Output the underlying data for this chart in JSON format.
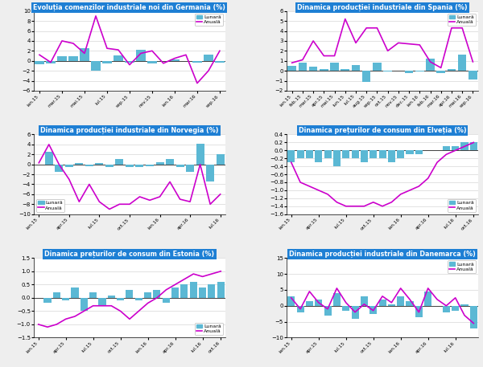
{
  "title_bg_color": "#1E7FD4",
  "bar_color": "#5BB8D4",
  "line_color": "#CC00CC",
  "grid_color": "#CCCCCC",
  "legend_bar_label": "Lunară",
  "legend_line_label": "Anuală",
  "figure_bg": "#EEEEEE",
  "charts": [
    {
      "title": "Evoluția comenzilor industriale noi din Germania (%)",
      "bars": [
        -0.7,
        -0.5,
        1.0,
        1.0,
        2.5,
        -2.0,
        -0.5,
        1.1,
        -0.3,
        2.2,
        -0.5,
        0.0,
        0.2,
        0.0,
        -0.3,
        1.2,
        -0.3
      ],
      "line": [
        1.2,
        -0.3,
        4.0,
        3.5,
        1.5,
        9.0,
        2.5,
        2.2,
        -0.8,
        1.5,
        2.0,
        -0.5,
        0.5,
        1.2,
        -4.5,
        -2.0,
        2.0
      ],
      "ylim": [
        -6,
        10
      ],
      "yticks": [
        -6,
        -4,
        -2,
        0,
        2,
        4,
        6,
        8,
        10
      ],
      "xtick_pos": [
        0,
        2,
        4,
        6,
        8,
        10,
        12,
        14,
        16
      ],
      "xtick_labels": [
        "ian.15",
        "mar.15",
        "mai.15",
        "iul.15",
        "sep.15",
        "nov.15",
        "ian.16",
        "mar.16",
        "sep.16"
      ],
      "legend_loc": "upper right"
    },
    {
      "title": "Dinamica producției industriale din Spania (%)",
      "bars": [
        0.5,
        0.8,
        0.4,
        0.2,
        0.8,
        0.2,
        0.6,
        -1.1,
        0.8,
        -0.1,
        0.0,
        -0.2,
        -0.1,
        1.2,
        -0.2,
        0.2,
        1.6,
        -0.9
      ],
      "line": [
        0.8,
        1.1,
        3.0,
        1.5,
        1.5,
        5.2,
        2.8,
        4.3,
        4.3,
        2.0,
        2.8,
        2.7,
        2.6,
        0.9,
        0.3,
        4.3,
        4.3,
        0.9
      ],
      "ylim": [
        -2,
        6
      ],
      "yticks": [
        -2,
        -1,
        0,
        1,
        2,
        3,
        4,
        5,
        6
      ],
      "xtick_pos": [
        0,
        1,
        2,
        3,
        4,
        5,
        6,
        7,
        8,
        9,
        10,
        11,
        12,
        13,
        14,
        15,
        16,
        17
      ],
      "xtick_labels": [
        "ian.15",
        "feb.15",
        "mar.15",
        "apr.15",
        "mai.15",
        "iun.15",
        "iul.15",
        "aug.15",
        "sep.15",
        "oct.15",
        "nov.15",
        "dec.15",
        "ian.16",
        "feb.16",
        "mar.16",
        "apr.16",
        "mai.16",
        "sep.16"
      ],
      "legend_loc": "upper right"
    },
    {
      "title": "Dinamica producției industriale din Norvegia (%)",
      "bars": [
        0.0,
        2.5,
        -1.5,
        -0.5,
        0.3,
        -0.3,
        0.3,
        -0.5,
        1.0,
        -0.5,
        -0.5,
        -0.3,
        0.5,
        1.0,
        -0.5,
        -1.5,
        4.2,
        -3.5,
        2.0
      ],
      "line": [
        0.3,
        4.0,
        0.0,
        -3.0,
        -7.5,
        -4.0,
        -7.5,
        -9.0,
        -8.0,
        -8.0,
        -6.5,
        -7.2,
        -6.5,
        -3.5,
        -7.0,
        -7.5,
        0.0,
        -8.0,
        -6.0
      ],
      "ylim": [
        -10,
        6
      ],
      "yticks": [
        -10,
        -8,
        -6,
        -4,
        -2,
        0,
        2,
        4,
        6
      ],
      "xtick_pos": [
        0,
        3,
        6,
        9,
        12,
        15,
        18
      ],
      "xtick_labels": [
        "ian.15",
        "apr.15",
        "iul.15",
        "oct.15",
        "ian.16",
        "apr.16",
        "iul.16"
      ],
      "legend_loc": "lower left"
    },
    {
      "title": "Dinamica prețurilor de consum din Elveția (%)",
      "bars": [
        -0.3,
        -0.2,
        -0.2,
        -0.3,
        -0.2,
        -0.4,
        -0.2,
        -0.2,
        -0.3,
        -0.2,
        -0.2,
        -0.3,
        -0.2,
        -0.1,
        -0.1,
        0.0,
        0.0,
        0.1,
        0.1,
        0.2,
        0.2
      ],
      "line": [
        -0.3,
        -0.8,
        -0.9,
        -1.0,
        -1.1,
        -1.3,
        -1.4,
        -1.4,
        -1.4,
        -1.3,
        -1.4,
        -1.3,
        -1.1,
        -1.0,
        -0.9,
        -0.7,
        -0.3,
        -0.1,
        0.0,
        0.1,
        0.2
      ],
      "ylim": [
        -1.6,
        0.4
      ],
      "yticks": [
        -1.6,
        -1.4,
        -1.2,
        -1.0,
        -0.8,
        -0.6,
        -0.4,
        -0.2,
        0.0,
        0.2,
        0.4
      ],
      "xtick_pos": [
        0,
        3,
        6,
        9,
        12,
        15,
        18,
        20
      ],
      "xtick_labels": [
        "ian.15",
        "apr.15",
        "iul.15",
        "oct.15",
        "ian.16",
        "apr.16",
        "iul.16",
        "oct.16"
      ],
      "legend_loc": "lower right"
    },
    {
      "title": "Dinamica prețurilor de consum din Estonia (%)",
      "bars": [
        0.0,
        -0.2,
        0.2,
        -0.1,
        0.4,
        -0.5,
        0.2,
        -0.3,
        0.1,
        -0.1,
        0.3,
        -0.1,
        0.2,
        0.3,
        -0.2,
        0.4,
        0.5,
        0.6,
        0.4,
        0.5,
        0.6
      ],
      "line": [
        -1.0,
        -1.1,
        -1.0,
        -0.8,
        -0.7,
        -0.5,
        -0.3,
        -0.3,
        -0.3,
        -0.5,
        -0.8,
        -0.5,
        -0.2,
        0.0,
        0.3,
        0.5,
        0.7,
        0.9,
        0.8,
        0.9,
        1.0
      ],
      "ylim": [
        -1.5,
        1.5
      ],
      "yticks": [
        -1.5,
        -1.0,
        -0.5,
        0.0,
        0.5,
        1.0,
        1.5
      ],
      "xtick_pos": [
        0,
        3,
        6,
        9,
        12,
        15,
        18,
        20
      ],
      "xtick_labels": [
        "ian.15",
        "apr.15",
        "iul.15",
        "oct.15",
        "ian.16",
        "apr.16",
        "iul.16",
        "oct.16"
      ],
      "legend_loc": "lower right"
    },
    {
      "title": "Dinamica producției industriale din Danemarca (%)",
      "bars": [
        3.0,
        -2.0,
        1.5,
        2.0,
        -3.0,
        4.0,
        -1.5,
        -4.0,
        3.0,
        -2.5,
        2.0,
        0.5,
        3.0,
        1.5,
        -3.5,
        4.5,
        0.0,
        -2.0,
        -1.5,
        0.5,
        -7.0
      ],
      "line": [
        2.5,
        -1.0,
        4.5,
        1.0,
        -1.0,
        5.5,
        1.0,
        -2.0,
        0.5,
        -1.5,
        3.0,
        1.0,
        5.5,
        2.0,
        -2.0,
        5.5,
        2.0,
        0.0,
        2.5,
        -3.0,
        -5.5
      ],
      "ylim": [
        -10,
        15
      ],
      "yticks": [
        -10,
        -5,
        0,
        5,
        10,
        15
      ],
      "xtick_pos": [
        0,
        3,
        6,
        9,
        12,
        15,
        18
      ],
      "xtick_labels": [
        "ian.15",
        "apr.15",
        "iul.15",
        "oct.15",
        "ian.16",
        "apr.16",
        "iul.16"
      ],
      "legend_loc": "upper right"
    }
  ]
}
